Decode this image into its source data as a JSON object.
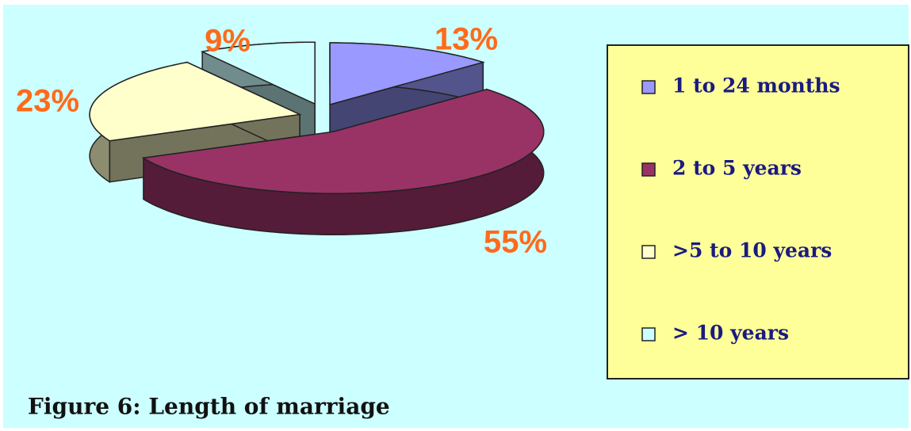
{
  "chart_data": {
    "type": "pie3d",
    "title": "Figure 6: Length of marriage",
    "categories": [
      "1 to 24 months",
      "2 to 5 years",
      ">5 to 10 years",
      "> 10 years"
    ],
    "values": [
      13,
      55,
      23,
      9
    ],
    "value_labels": [
      "13%",
      "55%",
      "23%",
      "9%"
    ],
    "colors": [
      "#9999ff",
      "#993366",
      "#ffffcc",
      "#ccffff"
    ],
    "legend": "right"
  }
}
